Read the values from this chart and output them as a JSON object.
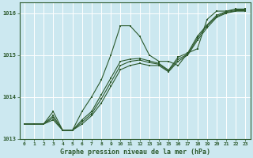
{
  "x": [
    0,
    1,
    2,
    3,
    4,
    5,
    6,
    7,
    8,
    9,
    10,
    11,
    12,
    13,
    14,
    15,
    16,
    17,
    18,
    19,
    20,
    21,
    22,
    23
  ],
  "series_main": [
    1013.35,
    1013.35,
    1013.35,
    1013.65,
    1013.2,
    1013.2,
    1013.65,
    1014.0,
    1014.4,
    1015.0,
    1015.7,
    1015.7,
    1015.45,
    1015.0,
    1014.85,
    1014.85,
    1014.75,
    1015.05,
    1015.15,
    1015.85,
    1016.05,
    1016.05,
    1016.1,
    1016.1
  ],
  "series_b1": [
    1013.35,
    1013.35,
    1013.35,
    1013.45,
    1013.2,
    1013.2,
    1013.35,
    1013.55,
    1013.85,
    1014.25,
    1014.65,
    1014.75,
    1014.8,
    1014.75,
    1014.75,
    1014.6,
    1014.85,
    1015.0,
    1015.35,
    1015.65,
    1015.9,
    1016.0,
    1016.05,
    1016.05
  ],
  "series_b2": [
    1013.35,
    1013.35,
    1013.35,
    1013.5,
    1013.2,
    1013.2,
    1013.4,
    1013.6,
    1013.95,
    1014.35,
    1014.75,
    1014.85,
    1014.88,
    1014.82,
    1014.78,
    1014.62,
    1014.9,
    1015.02,
    1015.4,
    1015.7,
    1015.92,
    1016.02,
    1016.06,
    1016.06
  ],
  "series_b3": [
    1013.35,
    1013.35,
    1013.35,
    1013.55,
    1013.2,
    1013.2,
    1013.45,
    1013.65,
    1014.05,
    1014.45,
    1014.85,
    1014.9,
    1014.92,
    1014.86,
    1014.8,
    1014.64,
    1014.95,
    1015.05,
    1015.45,
    1015.72,
    1015.95,
    1016.04,
    1016.08,
    1016.08
  ],
  "bg_color": "#cce8f0",
  "line_color": "#2d5a2d",
  "grid_color": "#ffffff",
  "xlabel": "Graphe pression niveau de la mer (hPa)",
  "ylim": [
    1013.0,
    1016.25
  ],
  "xlim_min": -0.5,
  "xlim_max": 23.5,
  "yticks": [
    1013,
    1014,
    1015,
    1016
  ],
  "xticks": [
    0,
    1,
    2,
    3,
    4,
    5,
    6,
    7,
    8,
    9,
    10,
    11,
    12,
    13,
    14,
    15,
    16,
    17,
    18,
    19,
    20,
    21,
    22,
    23
  ]
}
